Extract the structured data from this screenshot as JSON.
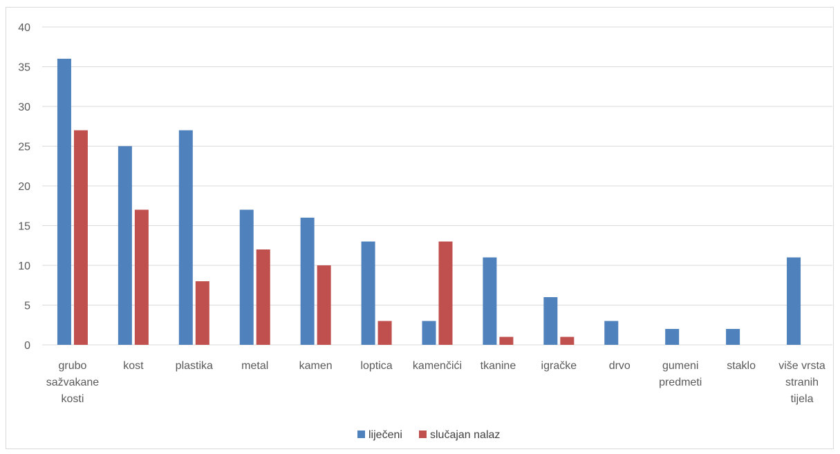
{
  "chart_data": {
    "type": "bar",
    "categories": [
      [
        "grubo",
        "sažvakane",
        "kosti"
      ],
      [
        "kost"
      ],
      [
        "plastika"
      ],
      [
        "metal"
      ],
      [
        "kamen"
      ],
      [
        "loptica"
      ],
      [
        "kamenčići"
      ],
      [
        "tkanine"
      ],
      [
        "igračke"
      ],
      [
        "drvo"
      ],
      [
        "gumeni",
        "predmeti"
      ],
      [
        "staklo"
      ],
      [
        "više vrsta",
        "stranih",
        "tijela"
      ]
    ],
    "series": [
      {
        "name": "liječeni",
        "color": "#4f81bd",
        "values": [
          36,
          25,
          27,
          17,
          16,
          13,
          3,
          11,
          6,
          3,
          2,
          2,
          11
        ]
      },
      {
        "name": "slučajan nalaz",
        "color": "#c0504d",
        "values": [
          27,
          17,
          8,
          12,
          10,
          3,
          13,
          1,
          1,
          0,
          0,
          0,
          0
        ]
      }
    ],
    "ylim": [
      0,
      40
    ],
    "yticks": [
      0,
      5,
      10,
      15,
      20,
      25,
      30,
      35,
      40
    ],
    "grid": true,
    "legend_position": "bottom",
    "title": "",
    "xlabel": "",
    "ylabel": ""
  }
}
